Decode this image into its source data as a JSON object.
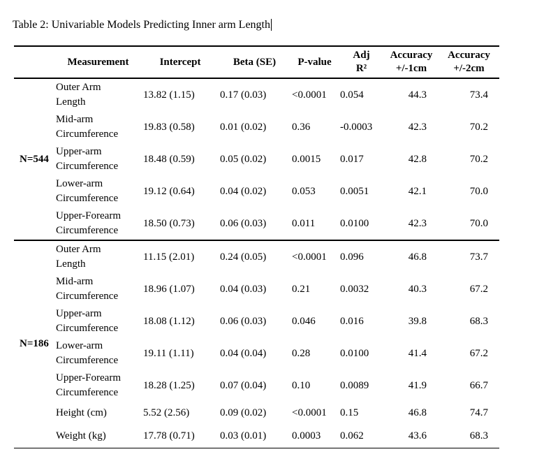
{
  "caption": "Table 2: Univariable Models Predicting Inner arm Length",
  "header": {
    "measurement": "Measurement",
    "intercept": "Intercept",
    "beta": "Beta (SE)",
    "pvalue": "P-value",
    "adj_line1": "Adj",
    "adj_line2": "R²",
    "acc1_line1": "Accuracy",
    "acc1_line2": "+/-1cm",
    "acc2_line1": "Accuracy",
    "acc2_line2": "+/-2cm"
  },
  "groups": [
    {
      "label": "N=544",
      "rows": [
        {
          "measurement": "Outer Arm\nLength",
          "intercept": "13.82 (1.15)",
          "beta": "0.17 (0.03)",
          "pvalue": "<0.0001",
          "adj_r2": "0.054",
          "acc1": "44.3",
          "acc2": "73.4"
        },
        {
          "measurement": "Mid-arm\nCircumference",
          "intercept": "19.83 (0.58)",
          "beta": "0.01 (0.02)",
          "pvalue": "0.36",
          "adj_r2": "-0.0003",
          "acc1": "42.3",
          "acc2": "70.2"
        },
        {
          "measurement": "Upper-arm\nCircumference",
          "intercept": "18.48 (0.59)",
          "beta": "0.05 (0.02)",
          "pvalue": "0.0015",
          "adj_r2": "0.017",
          "acc1": "42.8",
          "acc2": "70.2"
        },
        {
          "measurement": "Lower-arm\nCircumference",
          "intercept": "19.12 (0.64)",
          "beta": "0.04 (0.02)",
          "pvalue": "0.053",
          "adj_r2": "0.0051",
          "acc1": "42.1",
          "acc2": "70.0"
        },
        {
          "measurement": "Upper-Forearm\nCircumference",
          "intercept": "18.50 (0.73)",
          "beta": "0.06 (0.03)",
          "pvalue": "0.011",
          "adj_r2": "0.0100",
          "acc1": "42.3",
          "acc2": "70.0"
        }
      ]
    },
    {
      "label": "N=186",
      "rows": [
        {
          "measurement": "Outer Arm\nLength",
          "intercept": "11.15 (2.01)",
          "beta": "0.24 (0.05)",
          "pvalue": "<0.0001",
          "adj_r2": "0.096",
          "acc1": "46.8",
          "acc2": "73.7"
        },
        {
          "measurement": "Mid-arm\nCircumference",
          "intercept": "18.96 (1.07)",
          "beta": "0.04 (0.03)",
          "pvalue": "0.21",
          "adj_r2": "0.0032",
          "acc1": "40.3",
          "acc2": "67.2"
        },
        {
          "measurement": "Upper-arm\nCircumference",
          "intercept": "18.08 (1.12)",
          "beta": "0.06 (0.03)",
          "pvalue": "0.046",
          "adj_r2": "0.016",
          "acc1": "39.8",
          "acc2": "68.3"
        },
        {
          "measurement": "Lower-arm\nCircumference",
          "intercept": "19.11 (1.11)",
          "beta": "0.04 (0.04)",
          "pvalue": "0.28",
          "adj_r2": "0.0100",
          "acc1": "41.4",
          "acc2": "67.2"
        },
        {
          "measurement": "Upper-Forearm\nCircumference",
          "intercept": "18.28 (1.25)",
          "beta": "0.07 (0.04)",
          "pvalue": "0.10",
          "adj_r2": "0.0089",
          "acc1": "41.9",
          "acc2": "66.7"
        },
        {
          "measurement": "Height (cm)",
          "intercept": "5.52 (2.56)",
          "beta": "0.09 (0.02)",
          "pvalue": "<0.0001",
          "adj_r2": "0.15",
          "acc1": "46.8",
          "acc2": "74.7"
        },
        {
          "measurement": "Weight (kg)",
          "intercept": "17.78 (0.71)",
          "beta": "0.03 (0.01)",
          "pvalue": "0.0003",
          "adj_r2": "0.062",
          "acc1": "43.6",
          "acc2": "68.3"
        }
      ]
    }
  ],
  "colors": {
    "text": "#000000",
    "background": "#ffffff",
    "rule": "#000000"
  }
}
